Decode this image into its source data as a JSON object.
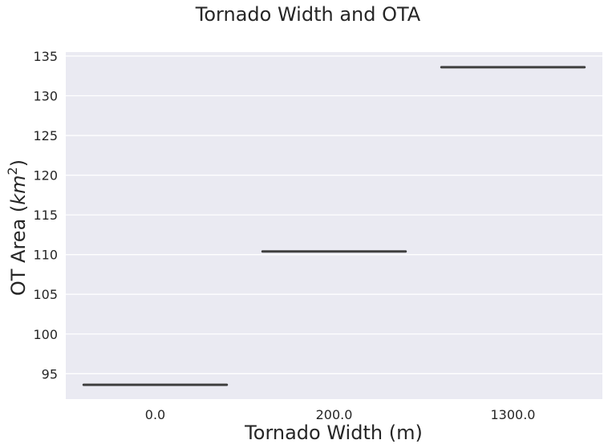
{
  "chart_data": {
    "type": "box",
    "title": "Tornado Width and OTA",
    "xlabel": "Tornado Width (m)",
    "ylabel": {
      "prefix": "OT Area (",
      "var": "km",
      "sup": "2",
      "suffix": ")"
    },
    "categories": [
      "0.0",
      "200.0",
      "1300.0"
    ],
    "values": [
      93.6,
      110.4,
      133.6
    ],
    "ylim": [
      91.8,
      135.5
    ],
    "yticks": [
      95,
      100,
      105,
      110,
      115,
      120,
      125,
      130,
      135
    ],
    "grid": true,
    "colors": {
      "plot_bg": "#eaeaf2",
      "grid": "#ffffff",
      "line": "#3f3f3f",
      "text": "#262626"
    }
  }
}
